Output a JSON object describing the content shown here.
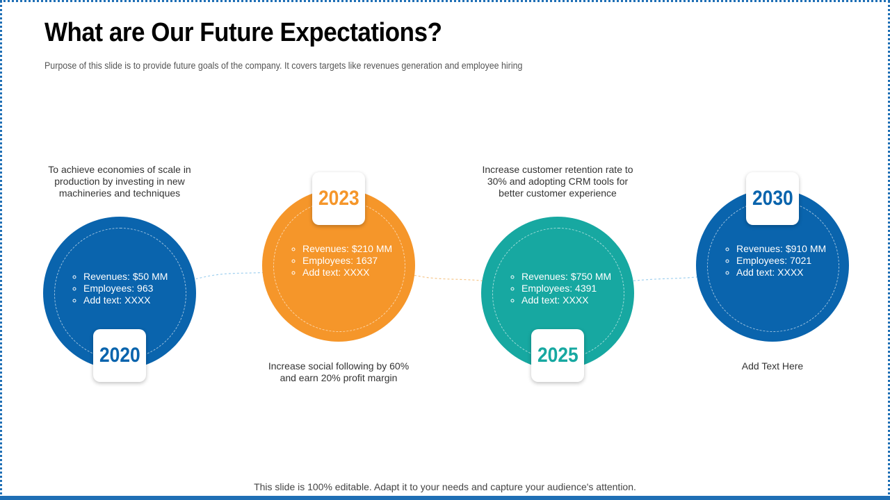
{
  "header": {
    "title": "What are Our Future Expectations?",
    "subtitle": "Purpose of this slide is to provide future goals of the company. It covers targets like revenues generation and employee hiring"
  },
  "milestones": [
    {
      "year": "2020",
      "items": [
        "Revenues: $50 MM",
        "Employees: 963",
        "Add text: XXXX"
      ],
      "description": "To achieve economies of scale in production by investing in new machineries and techniques"
    },
    {
      "year": "2023",
      "items": [
        "Revenues: $210 MM",
        "Employees: 1637",
        "Add text: XXXX"
      ],
      "description": "Increase social following by 60% and earn 20% profit margin"
    },
    {
      "year": "2025",
      "items": [
        "Revenues: $750 MM",
        "Employees: 4391",
        "Add text: XXXX"
      ],
      "description": "Increase customer retention rate to 30% and adopting CRM tools for better customer experience"
    },
    {
      "year": "2030",
      "items": [
        "Revenues: $910 MM",
        "Employees: 7021",
        "Add text: XXXX"
      ],
      "description": "Add Text Here"
    }
  ],
  "footer": {
    "note": "This slide is 100% editable. Adapt it to your needs and capture your audience's attention."
  }
}
